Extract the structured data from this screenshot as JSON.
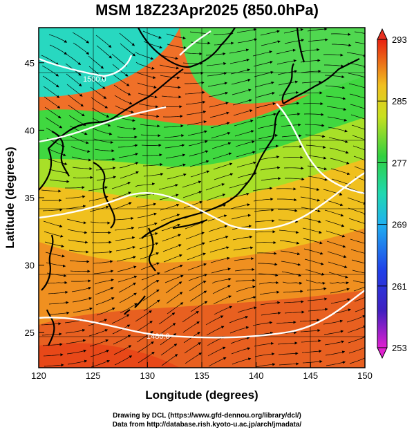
{
  "title": "MSM 18Z23Apr2025 (850.0hPa)",
  "map": {
    "x_axis": {
      "label": "Longitude (degrees)",
      "range": [
        120,
        150
      ],
      "ticks": [
        "120",
        "125",
        "130",
        "135",
        "140",
        "145",
        "150"
      ]
    },
    "y_axis": {
      "label": "Latitude  (degrees)",
      "range": [
        22.4,
        47.6
      ],
      "ticks": [
        "25",
        "30",
        "35",
        "40",
        "45"
      ]
    },
    "colorbar": {
      "range": [
        253,
        293
      ],
      "labels": [
        "293",
        "285",
        "277",
        "269",
        "261",
        "253"
      ]
    },
    "contour_labels": [
      "1500.0",
      "1480.0"
    ],
    "colors": {
      "warm": "#e8541e",
      "mid": "#f0c21e",
      "green": "#2fd24a",
      "cyan": "#1ed8c8"
    }
  },
  "credits": {
    "line1": "Drawing by DCL (https://www.gfd-dennou.org/library/dcl/)",
    "line2": "Data from http://database.rish.kyoto-u.ac.jp/arch/jmadata/"
  }
}
